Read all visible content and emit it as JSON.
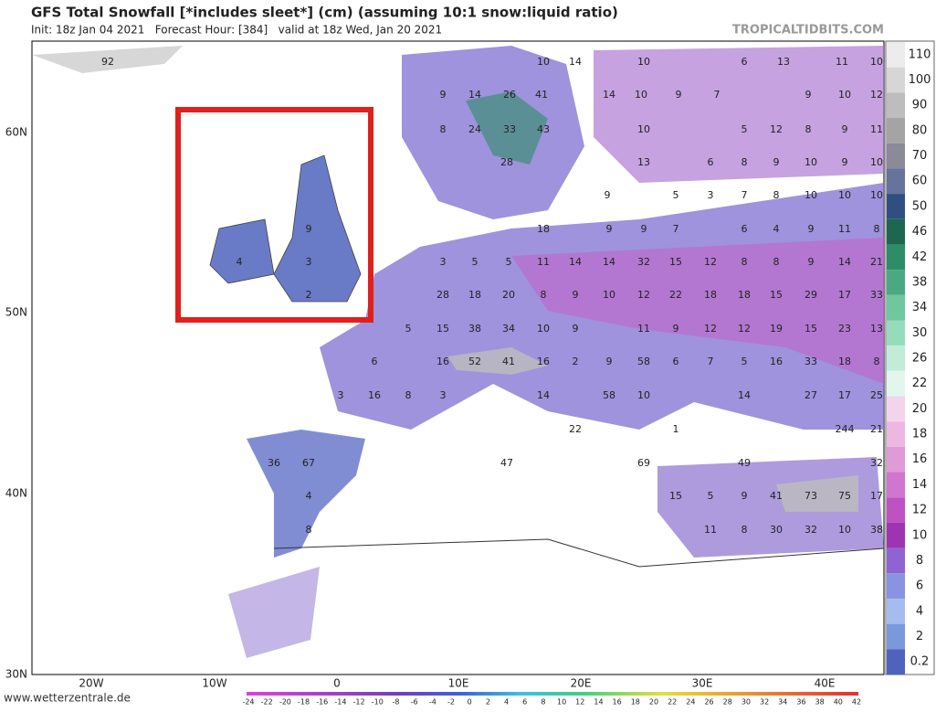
{
  "header": {
    "title": "GFS Total Snowfall [*includes sleet*] (cm) (assuming 10:1 snow:liquid ratio)",
    "subtitle": "Init: 18z Jan 04 2021   Forecast Hour: [384]   valid at 18z Wed, Jan 20 2021",
    "site": "TROPICALTIDBITS.COM"
  },
  "map": {
    "lat_labels": [
      "60N",
      "50N",
      "40N",
      "30N"
    ],
    "lon_labels": [
      "20W",
      "10W",
      "0",
      "10E",
      "20E",
      "30E",
      "40E"
    ],
    "rows": [
      [
        92,
        10,
        14,
        10,
        6,
        13,
        11,
        10
      ],
      [
        9,
        14,
        26,
        41,
        14,
        10,
        9,
        7,
        9,
        10,
        12
      ],
      [
        8,
        24,
        33,
        43,
        10,
        5,
        12,
        8,
        9,
        11
      ],
      [
        28,
        13,
        6,
        8,
        9,
        10,
        9,
        10
      ],
      [
        9,
        5,
        3,
        7,
        8,
        10,
        10,
        10
      ],
      [
        9,
        18,
        9,
        9,
        7,
        6,
        4,
        9,
        11,
        8
      ],
      [
        4,
        3,
        3,
        5,
        5,
        11,
        14,
        14,
        32,
        15,
        12,
        8,
        8,
        9,
        14,
        21
      ],
      [
        2,
        28,
        18,
        20,
        8,
        9,
        10,
        12,
        22,
        18,
        18,
        15,
        29,
        17,
        33
      ],
      [
        5,
        15,
        38,
        34,
        10,
        9,
        11,
        9,
        12,
        12,
        19,
        15,
        23,
        13
      ],
      [
        6,
        16,
        52,
        41,
        16,
        2,
        9,
        58,
        6,
        7,
        5,
        16,
        33,
        18,
        8
      ],
      [
        3,
        16,
        8,
        3,
        14,
        58,
        10,
        14,
        27,
        17,
        25
      ],
      [
        22,
        1,
        244,
        21
      ],
      [
        36,
        67,
        47,
        69,
        49,
        32
      ],
      [
        4,
        15,
        5,
        9,
        41,
        73,
        75,
        17
      ],
      [
        8,
        11,
        8,
        30,
        32,
        10,
        38
      ]
    ]
  },
  "colorbar": {
    "labels": [
      110,
      100,
      90,
      80,
      70,
      60,
      50,
      46,
      42,
      38,
      34,
      30,
      26,
      22,
      20,
      18,
      16,
      14,
      12,
      10,
      8,
      6,
      4,
      2,
      0.2
    ],
    "colors": [
      "#ececec",
      "#d6d6d6",
      "#bdbdbd",
      "#a4a4a4",
      "#8a8a98",
      "#66739a",
      "#2f4f83",
      "#1f6651",
      "#2e8c68",
      "#4aa982",
      "#6fc69f",
      "#97dbbd",
      "#c0ecd9",
      "#e2f6ee",
      "#f4d4ec",
      "#ecb8e2",
      "#e09ad8",
      "#d076ce",
      "#bf52c2",
      "#9f34b2",
      "#8f64d2",
      "#8a92e2",
      "#a6bcee",
      "#7a98dc",
      "#4f63bd"
    ]
  },
  "temp_bar": {
    "labels": [
      -24,
      -22,
      -20,
      -18,
      -16,
      -14,
      -12,
      -10,
      -8,
      -6,
      -4,
      -2,
      0,
      2,
      4,
      6,
      8,
      10,
      12,
      14,
      16,
      18,
      20,
      22,
      24,
      26,
      28,
      30,
      32,
      34,
      36,
      38,
      40,
      42
    ]
  },
  "watermark": "www.wetterzentrale.de"
}
